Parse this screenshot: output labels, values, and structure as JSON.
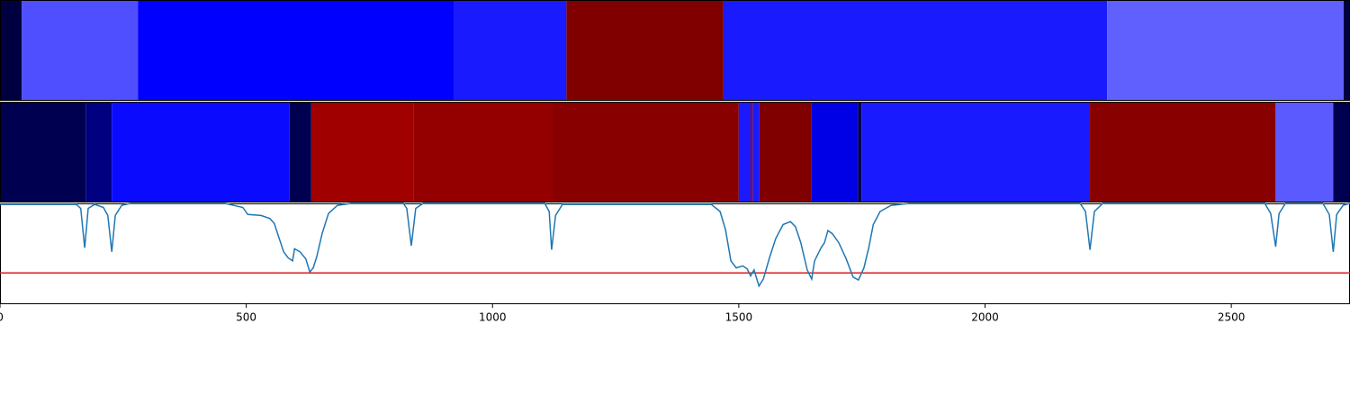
{
  "chart_data": {
    "type": "segmentation",
    "xlim": [
      0,
      2741
    ],
    "xticks": [
      0,
      500,
      1000,
      1500,
      2000,
      2500
    ],
    "bands": [
      [
        {
          "start": 0,
          "end": 44,
          "color": "#000040"
        },
        {
          "start": 44,
          "end": 280,
          "color": "#4f4fff"
        },
        {
          "start": 280,
          "end": 921,
          "color": "#0000ff"
        },
        {
          "start": 921,
          "end": 1150,
          "color": "#1a1aff"
        },
        {
          "start": 1150,
          "end": 1469,
          "color": "#800000"
        },
        {
          "start": 1469,
          "end": 2248,
          "color": "#1a1aff"
        },
        {
          "start": 2248,
          "end": 2728,
          "color": "#6060ff"
        },
        {
          "start": 2728,
          "end": 2741,
          "color": "#000040"
        }
      ],
      [
        {
          "start": 0,
          "end": 174,
          "color": "#000050"
        },
        {
          "start": 174,
          "end": 227,
          "color": "#000080"
        },
        {
          "start": 227,
          "end": 588,
          "color": "#0a0aff"
        },
        {
          "start": 588,
          "end": 632,
          "color": "#000050"
        },
        {
          "start": 632,
          "end": 839,
          "color": "#a00000"
        },
        {
          "start": 839,
          "end": 1122,
          "color": "#940000"
        },
        {
          "start": 1122,
          "end": 1500,
          "color": "#880000"
        },
        {
          "start": 1500,
          "end": 1524,
          "color": "#1a1aff"
        },
        {
          "start": 1524,
          "end": 1528,
          "color": "#a00000"
        },
        {
          "start": 1528,
          "end": 1542,
          "color": "#1a1aff"
        },
        {
          "start": 1542,
          "end": 1648,
          "color": "#800000"
        },
        {
          "start": 1648,
          "end": 1742,
          "color": "#0000e6"
        },
        {
          "start": 1742,
          "end": 1749,
          "color": "#000050"
        },
        {
          "start": 1749,
          "end": 2213,
          "color": "#1a1aff"
        },
        {
          "start": 2213,
          "end": 2590,
          "color": "#880000"
        },
        {
          "start": 2590,
          "end": 2707,
          "color": "#5a5aff"
        },
        {
          "start": 2707,
          "end": 2741,
          "color": "#000050"
        }
      ]
    ],
    "line": {
      "color": "#1f77b4",
      "ylim": [
        0,
        1
      ],
      "threshold": 0.31,
      "threshold_color": "#e31a1c",
      "x": [
        0,
        155,
        164,
        172,
        179,
        192,
        210,
        219,
        227,
        234,
        247,
        265,
        457,
        493,
        503,
        530,
        548,
        557,
        567,
        576,
        585,
        594,
        598,
        609,
        621,
        629,
        636,
        643,
        654,
        667,
        685,
        713,
        819,
        826,
        835,
        844,
        859,
        1106,
        1115,
        1120,
        1128,
        1142,
        1444,
        1462,
        1473,
        1484,
        1495,
        1508,
        1517,
        1524,
        1531,
        1541,
        1550,
        1563,
        1575,
        1590,
        1605,
        1615,
        1626,
        1639,
        1648,
        1654,
        1667,
        1674,
        1681,
        1690,
        1703,
        1718,
        1732,
        1743,
        1754,
        1764,
        1773,
        1787,
        1809,
        1846,
        2193,
        2204,
        2213,
        2222,
        2239,
        2568,
        2580,
        2590,
        2597,
        2610,
        2686,
        2699,
        2707,
        2714,
        2727,
        2741
      ],
      "values": [
        0.99,
        0.99,
        0.95,
        0.56,
        0.95,
        0.99,
        0.96,
        0.88,
        0.52,
        0.88,
        0.98,
        1.0,
        1.0,
        0.96,
        0.89,
        0.88,
        0.85,
        0.8,
        0.65,
        0.52,
        0.46,
        0.43,
        0.55,
        0.52,
        0.45,
        0.32,
        0.36,
        0.47,
        0.7,
        0.9,
        0.98,
        1.0,
        1.0,
        0.95,
        0.58,
        0.95,
        1.0,
        1.0,
        0.92,
        0.54,
        0.88,
        0.99,
        0.99,
        0.92,
        0.74,
        0.43,
        0.36,
        0.38,
        0.35,
        0.28,
        0.34,
        0.18,
        0.25,
        0.47,
        0.65,
        0.79,
        0.82,
        0.77,
        0.61,
        0.34,
        0.25,
        0.43,
        0.56,
        0.61,
        0.73,
        0.7,
        0.61,
        0.45,
        0.27,
        0.24,
        0.36,
        0.56,
        0.79,
        0.92,
        0.98,
        1.0,
        1.0,
        0.92,
        0.54,
        0.92,
        1.0,
        1.0,
        0.9,
        0.57,
        0.9,
        1.0,
        1.0,
        0.89,
        0.52,
        0.89,
        0.98,
        1.0
      ]
    }
  }
}
